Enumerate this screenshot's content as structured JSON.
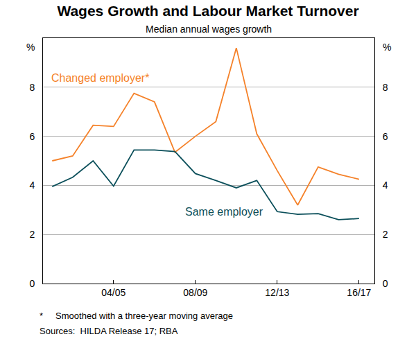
{
  "chart_data": {
    "type": "line",
    "title": "Wages Growth and Labour Market Turnover",
    "subtitle": "Median annual wages growth",
    "ylabel": "%",
    "y2label": "%",
    "categories": [
      null,
      null,
      null,
      "04/05",
      null,
      null,
      null,
      "08/09",
      null,
      null,
      null,
      "12/13",
      null,
      null,
      null,
      "16/17"
    ],
    "series": [
      {
        "name": "Changed employer*",
        "color": "#f5822a",
        "values": [
          5.0,
          5.2,
          6.45,
          6.4,
          7.75,
          7.4,
          5.35,
          6.0,
          6.6,
          9.6,
          6.1,
          4.6,
          3.2,
          4.75,
          4.45,
          4.25
        ]
      },
      {
        "name": "Same employer",
        "color": "#0b4f5a",
        "values": [
          3.95,
          4.33,
          5.0,
          3.97,
          5.44,
          5.44,
          5.38,
          4.48,
          4.2,
          3.9,
          4.2,
          2.93,
          2.82,
          2.85,
          2.6,
          2.65
        ]
      }
    ],
    "ylim": [
      0,
      10
    ],
    "yticks": [
      0,
      2,
      4,
      6,
      8
    ],
    "y2lim": [
      0,
      10
    ],
    "y2ticks": [
      0,
      2,
      4,
      6,
      8
    ],
    "grid": true,
    "footnotes": [
      "*     Smoothed with a three-year moving average",
      "Sources:  HILDA Release 17; RBA"
    ]
  }
}
